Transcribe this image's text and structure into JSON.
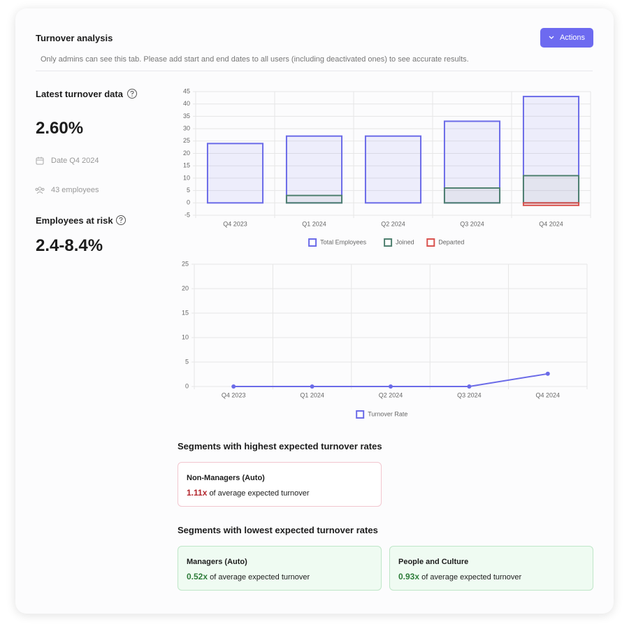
{
  "header": {
    "title": "Turnover analysis",
    "notice": "Only admins can see this tab. Please add start and end dates to all users (including deactivated ones) to see accurate results.",
    "action_button": "Actions"
  },
  "summary": {
    "latest_label": "Latest turnover data",
    "latest_value": "2.60%",
    "date": "Date Q4 2024",
    "employees": "43 employees",
    "risk_label": "Employees at risk",
    "risk_value": "2.4-8.4%"
  },
  "chart_data": [
    {
      "type": "bar",
      "categories": [
        "Q4 2023",
        "Q1 2024",
        "Q2 2024",
        "Q3 2024",
        "Q4 2024"
      ],
      "series": [
        {
          "name": "Total Employees",
          "color": "#6b6be8",
          "values": [
            24,
            27,
            27,
            33,
            43
          ]
        },
        {
          "name": "Joined",
          "color": "#4f8070",
          "values": [
            0,
            3,
            0,
            6,
            11
          ]
        },
        {
          "name": "Departed",
          "color": "#d9534f",
          "values": [
            0,
            0,
            0,
            0,
            -1
          ]
        }
      ],
      "ylim": [
        -5,
        45
      ],
      "yticks": [
        -5,
        0,
        5,
        10,
        15,
        20,
        25,
        30,
        35,
        40,
        45
      ],
      "grid": true
    },
    {
      "type": "line",
      "categories": [
        "Q4 2023",
        "Q1 2024",
        "Q2 2024",
        "Q3 2024",
        "Q4 2024"
      ],
      "series": [
        {
          "name": "Turnover Rate",
          "color": "#6b6be8",
          "values": [
            0,
            0,
            0,
            0,
            2.6
          ]
        }
      ],
      "ylim": [
        0,
        25
      ],
      "yticks": [
        0,
        5,
        10,
        15,
        20,
        25
      ],
      "grid": true
    }
  ],
  "segments": {
    "highest": {
      "title": "Segments with highest expected turnover rates",
      "items": [
        {
          "name": "Non-Managers (Auto)",
          "multiplier": "1.11x",
          "text": "of average expected turnover"
        }
      ]
    },
    "lowest": {
      "title": "Segments with lowest expected turnover rates",
      "items": [
        {
          "name": "Managers (Auto)",
          "multiplier": "0.52x",
          "text": "of average expected turnover"
        },
        {
          "name": "People and Culture",
          "multiplier": "0.93x",
          "text": "of average expected turnover"
        }
      ]
    }
  }
}
